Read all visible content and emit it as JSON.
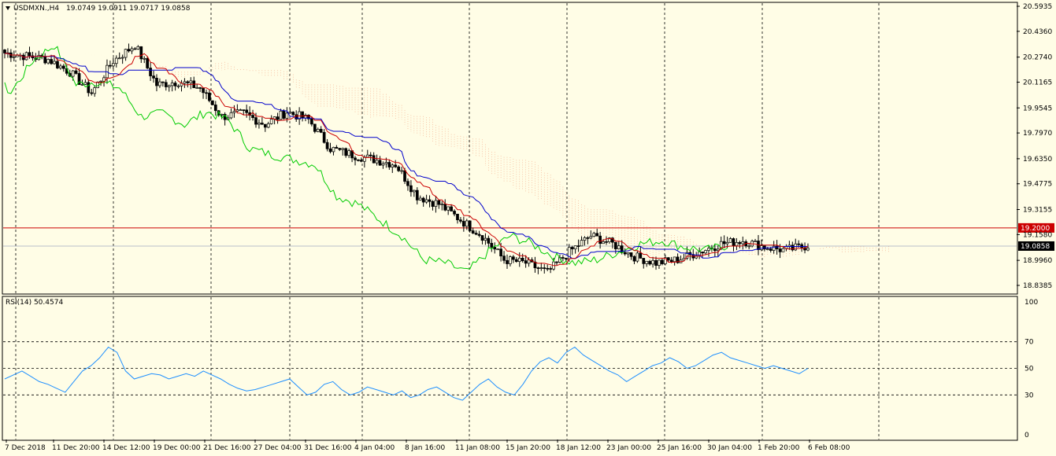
{
  "header": {
    "symbol": "USDMXN.,H4",
    "ohlc": "19.0749 19.0911 19.0717 19.0858"
  },
  "rsi_header": "RSI(14) 50.4574",
  "colors": {
    "background": "#fffde6",
    "candle": "#000000",
    "tenkan": "#cc0000",
    "kijun": "#0000cc",
    "chikou": "#00cc00",
    "cloud": "#f4a582",
    "rsi": "#1e8fff",
    "level_line": "#cc0000",
    "current_price_tag": "#000000"
  },
  "chart_data": [
    {
      "type": "candlestick",
      "symbol": "USDMXN",
      "timeframe": "H4",
      "indicators": [
        "Ichimoku Kinko Hyo"
      ],
      "ylim": [
        18.8385,
        20.5935
      ],
      "y_ticks": [
        "20.5935",
        "20.4360",
        "20.2740",
        "20.1165",
        "19.9545",
        "19.7970",
        "19.6350",
        "19.4775",
        "19.3155",
        "19.1580",
        "18.9960",
        "18.8385"
      ],
      "x_ticks": [
        "7 Dec 2018",
        "11 Dec 20:00",
        "14 Dec 12:00",
        "19 Dec 00:00",
        "21 Dec 16:00",
        "27 Dec 04:00",
        "31 Dec 16:00",
        "4 Jan 04:00",
        "8 Jan 16:00",
        "11 Jan 08:00",
        "15 Jan 20:00",
        "18 Jan 12:00",
        "23 Jan 00:00",
        "25 Jan 16:00",
        "30 Jan 04:00",
        "1 Feb 20:00",
        "6 Feb 08:00"
      ],
      "grid": true,
      "horizontal_level": {
        "value": 19.2,
        "label": "19.2000"
      },
      "current_price": {
        "value": 19.0858,
        "label": "19.0858"
      },
      "close_anchors": [
        20.3,
        20.28,
        20.26,
        20.18,
        20.05,
        20.25,
        20.35,
        20.1,
        20.12,
        20.08,
        19.9,
        19.92,
        19.85,
        19.93,
        19.88,
        19.7,
        19.66,
        19.63,
        19.6,
        19.4,
        19.35,
        19.25,
        19.15,
        19.0,
        18.98,
        18.92,
        19.05,
        19.15,
        19.1,
        19.02,
        18.98,
        19.0,
        19.05,
        19.1,
        19.12,
        19.08,
        19.06,
        19.09
      ]
    },
    {
      "type": "line",
      "name": "RSI(14)",
      "ylim": [
        0,
        100
      ],
      "levels": [
        30,
        50,
        70
      ],
      "y_ticks": [
        "100",
        "70",
        "50",
        "30",
        "0"
      ],
      "last_value": 50.4574,
      "values": [
        42,
        45,
        48,
        44,
        40,
        38,
        35,
        32,
        40,
        48,
        52,
        58,
        66,
        62,
        48,
        42,
        44,
        46,
        45,
        42,
        44,
        46,
        44,
        48,
        45,
        42,
        38,
        35,
        33,
        34,
        36,
        38,
        40,
        42,
        36,
        30,
        32,
        38,
        40,
        34,
        30,
        32,
        36,
        34,
        32,
        30,
        33,
        28,
        30,
        34,
        36,
        32,
        28,
        26,
        32,
        38,
        42,
        36,
        32,
        30,
        38,
        48,
        55,
        58,
        54,
        62,
        66,
        60,
        56,
        52,
        48,
        45,
        40,
        44,
        48,
        52,
        54,
        58,
        55,
        50,
        52,
        56,
        60,
        62,
        58,
        56,
        54,
        52,
        50,
        52,
        50,
        48,
        46,
        50
      ]
    }
  ]
}
